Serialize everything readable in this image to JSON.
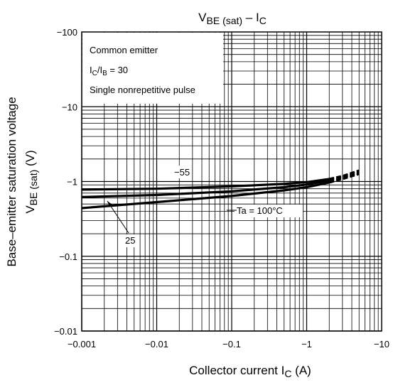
{
  "chart_data": {
    "type": "line",
    "title": {
      "main": "V",
      "main_sub": "BE (sat)",
      "dash": " – I",
      "dash_sub": "C"
    },
    "xlabel": {
      "main": "Collector current   I",
      "sub": "C",
      "unit": "   (A)"
    },
    "ylabel": {
      "line1": "Base–emitter saturation voltage",
      "line2_main": "V",
      "line2_sub": "BE (sat)",
      "line2_unit": "   (V)"
    },
    "x_scale": "log",
    "y_scale": "log",
    "xlim": [
      -0.001,
      -10
    ],
    "ylim": [
      -0.01,
      -100
    ],
    "x_ticks": [
      -0.001,
      -0.01,
      -0.1,
      -1,
      -10
    ],
    "x_tick_labels": [
      "−0.001",
      "−0.01",
      "−0.1",
      "−1",
      "−10"
    ],
    "y_ticks": [
      -0.01,
      -0.1,
      -1,
      -10,
      -100
    ],
    "y_tick_labels": [
      "−0.01",
      "−0.1",
      "−1",
      "−10",
      "−100"
    ],
    "grid": true,
    "legend_box": {
      "line1": "Common emitter",
      "line2_a": "I",
      "line2_a_sub": "C",
      "line2_b": "/I",
      "line2_b_sub": "B",
      "line2_c": " = 30",
      "line3": "Single nonrepetitive pulse"
    },
    "series": [
      {
        "name": "−55",
        "x": [
          -0.001,
          -0.01,
          -0.1,
          -0.5,
          -1,
          -2,
          -3,
          -5
        ],
        "y": [
          -0.78,
          -0.8,
          -0.86,
          -0.93,
          -0.98,
          -1.08,
          -1.18,
          -1.4
        ]
      },
      {
        "name": "25",
        "x": [
          -0.001,
          -0.01,
          -0.1,
          -0.5,
          -1,
          -2,
          -3,
          -5
        ],
        "y": [
          -0.62,
          -0.66,
          -0.74,
          -0.84,
          -0.91,
          -1.03,
          -1.13,
          -1.32
        ]
      },
      {
        "name": "Ta = 100°C",
        "x": [
          -0.001,
          -0.01,
          -0.1,
          -0.5,
          -1,
          -2,
          -3,
          -5
        ],
        "y": [
          -0.44,
          -0.53,
          -0.64,
          -0.76,
          -0.84,
          -0.97,
          -1.08,
          -1.26
        ]
      }
    ],
    "annotations": {
      "label_55": "−55",
      "label_25": "25",
      "label_100": "Ta = 100°C"
    }
  }
}
